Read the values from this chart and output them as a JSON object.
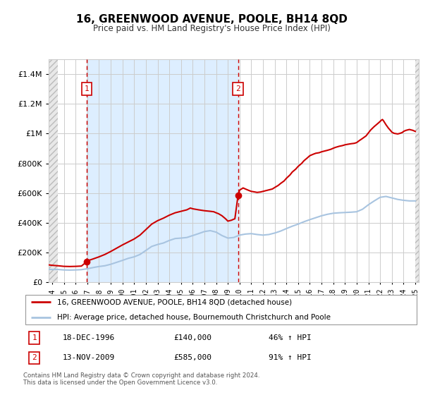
{
  "title": "16, GREENWOOD AVENUE, POOLE, BH14 8QD",
  "subtitle": "Price paid vs. HM Land Registry's House Price Index (HPI)",
  "ylim": [
    0,
    1500000
  ],
  "yticks": [
    0,
    200000,
    400000,
    600000,
    800000,
    1000000,
    1200000,
    1400000
  ],
  "hpi_color": "#a8c4e0",
  "price_color": "#cc0000",
  "annotation_color": "#cc0000",
  "grid_color": "#cccccc",
  "bg_color": "#ddeeff",
  "purchase1_date": 1996.96,
  "purchase1_price": 140000,
  "purchase2_date": 2009.87,
  "purchase2_price": 585000,
  "legend_label1": "16, GREENWOOD AVENUE, POOLE, BH14 8QD (detached house)",
  "legend_label2": "HPI: Average price, detached house, Bournemouth Christchurch and Poole",
  "ann1_text": "18-DEC-1996",
  "ann1_price": "£140,000",
  "ann1_hpi": "46% ↑ HPI",
  "ann2_text": "13-NOV-2009",
  "ann2_price": "£585,000",
  "ann2_hpi": "91% ↑ HPI",
  "footer": "Contains HM Land Registry data © Crown copyright and database right 2024.\nThis data is licensed under the Open Government Licence v3.0.",
  "xlim_left": 1993.7,
  "xlim_right": 2025.3,
  "hatch_left_end": 1994.5,
  "hatch_right_start": 2025.0,
  "hpi_data": [
    [
      1993.7,
      88000
    ],
    [
      1994.0,
      87000
    ],
    [
      1994.5,
      87000
    ],
    [
      1995.0,
      84000
    ],
    [
      1995.5,
      83000
    ],
    [
      1996.0,
      84000
    ],
    [
      1996.5,
      86000
    ],
    [
      1997.0,
      92000
    ],
    [
      1997.5,
      100000
    ],
    [
      1998.0,
      107000
    ],
    [
      1998.5,
      112000
    ],
    [
      1999.0,
      122000
    ],
    [
      1999.5,
      135000
    ],
    [
      2000.0,
      148000
    ],
    [
      2000.5,
      162000
    ],
    [
      2001.0,
      172000
    ],
    [
      2001.5,
      188000
    ],
    [
      2002.0,
      215000
    ],
    [
      2002.5,
      242000
    ],
    [
      2003.0,
      255000
    ],
    [
      2003.5,
      265000
    ],
    [
      2004.0,
      282000
    ],
    [
      2004.5,
      295000
    ],
    [
      2005.0,
      298000
    ],
    [
      2005.5,
      302000
    ],
    [
      2006.0,
      315000
    ],
    [
      2006.5,
      328000
    ],
    [
      2007.0,
      342000
    ],
    [
      2007.5,
      348000
    ],
    [
      2008.0,
      338000
    ],
    [
      2008.5,
      315000
    ],
    [
      2009.0,
      298000
    ],
    [
      2009.5,
      302000
    ],
    [
      2010.0,
      318000
    ],
    [
      2010.5,
      325000
    ],
    [
      2011.0,
      328000
    ],
    [
      2011.5,
      322000
    ],
    [
      2012.0,
      318000
    ],
    [
      2012.5,
      322000
    ],
    [
      2013.0,
      332000
    ],
    [
      2013.5,
      345000
    ],
    [
      2014.0,
      362000
    ],
    [
      2014.5,
      378000
    ],
    [
      2015.0,
      392000
    ],
    [
      2015.5,
      408000
    ],
    [
      2016.0,
      422000
    ],
    [
      2016.5,
      435000
    ],
    [
      2017.0,
      448000
    ],
    [
      2017.5,
      458000
    ],
    [
      2018.0,
      465000
    ],
    [
      2018.5,
      468000
    ],
    [
      2019.0,
      470000
    ],
    [
      2019.5,
      472000
    ],
    [
      2020.0,
      475000
    ],
    [
      2020.5,
      492000
    ],
    [
      2021.0,
      522000
    ],
    [
      2021.5,
      548000
    ],
    [
      2022.0,
      572000
    ],
    [
      2022.5,
      578000
    ],
    [
      2023.0,
      568000
    ],
    [
      2023.5,
      558000
    ],
    [
      2024.0,
      552000
    ],
    [
      2024.5,
      548000
    ],
    [
      2025.0,
      548000
    ]
  ],
  "price_data": [
    [
      1993.7,
      118000
    ],
    [
      1994.0,
      115000
    ],
    [
      1994.5,
      112000
    ],
    [
      1995.0,
      108000
    ],
    [
      1995.5,
      107000
    ],
    [
      1996.0,
      108000
    ],
    [
      1996.5,
      110000
    ],
    [
      1996.96,
      140000
    ],
    [
      1997.0,
      145000
    ],
    [
      1997.5,
      158000
    ],
    [
      1998.0,
      172000
    ],
    [
      1998.5,
      188000
    ],
    [
      1999.0,
      208000
    ],
    [
      1999.5,
      230000
    ],
    [
      2000.0,
      252000
    ],
    [
      2000.5,
      272000
    ],
    [
      2001.0,
      292000
    ],
    [
      2001.5,
      318000
    ],
    [
      2002.0,
      355000
    ],
    [
      2002.5,
      392000
    ],
    [
      2003.0,
      415000
    ],
    [
      2003.5,
      432000
    ],
    [
      2004.0,
      452000
    ],
    [
      2004.5,
      468000
    ],
    [
      2005.0,
      478000
    ],
    [
      2005.5,
      488000
    ],
    [
      2005.8,
      500000
    ],
    [
      2006.0,
      495000
    ],
    [
      2006.5,
      488000
    ],
    [
      2007.0,
      482000
    ],
    [
      2007.5,
      478000
    ],
    [
      2007.8,
      475000
    ],
    [
      2008.0,
      468000
    ],
    [
      2008.2,
      462000
    ],
    [
      2008.5,
      448000
    ],
    [
      2008.8,
      428000
    ],
    [
      2009.0,
      412000
    ],
    [
      2009.3,
      418000
    ],
    [
      2009.6,
      428000
    ],
    [
      2009.87,
      585000
    ],
    [
      2010.0,
      620000
    ],
    [
      2010.3,
      635000
    ],
    [
      2010.5,
      628000
    ],
    [
      2010.8,
      618000
    ],
    [
      2011.0,
      612000
    ],
    [
      2011.3,
      608000
    ],
    [
      2011.5,
      605000
    ],
    [
      2011.8,
      608000
    ],
    [
      2012.0,
      612000
    ],
    [
      2012.3,
      618000
    ],
    [
      2012.5,
      622000
    ],
    [
      2012.8,
      628000
    ],
    [
      2013.0,
      638000
    ],
    [
      2013.3,
      652000
    ],
    [
      2013.5,
      665000
    ],
    [
      2013.8,
      682000
    ],
    [
      2014.0,
      700000
    ],
    [
      2014.3,
      722000
    ],
    [
      2014.5,
      742000
    ],
    [
      2014.8,
      762000
    ],
    [
      2015.0,
      780000
    ],
    [
      2015.3,
      800000
    ],
    [
      2015.5,
      818000
    ],
    [
      2015.8,
      838000
    ],
    [
      2016.0,
      852000
    ],
    [
      2016.3,
      862000
    ],
    [
      2016.5,
      868000
    ],
    [
      2016.8,
      872000
    ],
    [
      2017.0,
      878000
    ],
    [
      2017.2,
      882000
    ],
    [
      2017.5,
      888000
    ],
    [
      2017.8,
      895000
    ],
    [
      2018.0,
      902000
    ],
    [
      2018.2,
      908000
    ],
    [
      2018.5,
      915000
    ],
    [
      2018.8,
      920000
    ],
    [
      2019.0,
      925000
    ],
    [
      2019.2,
      928000
    ],
    [
      2019.5,
      932000
    ],
    [
      2019.8,
      935000
    ],
    [
      2020.0,
      940000
    ],
    [
      2020.2,
      952000
    ],
    [
      2020.5,
      968000
    ],
    [
      2020.8,
      985000
    ],
    [
      2021.0,
      1005000
    ],
    [
      2021.2,
      1025000
    ],
    [
      2021.5,
      1048000
    ],
    [
      2021.8,
      1068000
    ],
    [
      2022.0,
      1082000
    ],
    [
      2022.1,
      1090000
    ],
    [
      2022.2,
      1095000
    ],
    [
      2022.3,
      1085000
    ],
    [
      2022.5,
      1060000
    ],
    [
      2022.7,
      1038000
    ],
    [
      2022.9,
      1020000
    ],
    [
      2023.0,
      1010000
    ],
    [
      2023.2,
      1002000
    ],
    [
      2023.5,
      998000
    ],
    [
      2023.7,
      1002000
    ],
    [
      2023.9,
      1008000
    ],
    [
      2024.0,
      1015000
    ],
    [
      2024.2,
      1022000
    ],
    [
      2024.5,
      1028000
    ],
    [
      2024.8,
      1022000
    ],
    [
      2025.0,
      1015000
    ]
  ]
}
